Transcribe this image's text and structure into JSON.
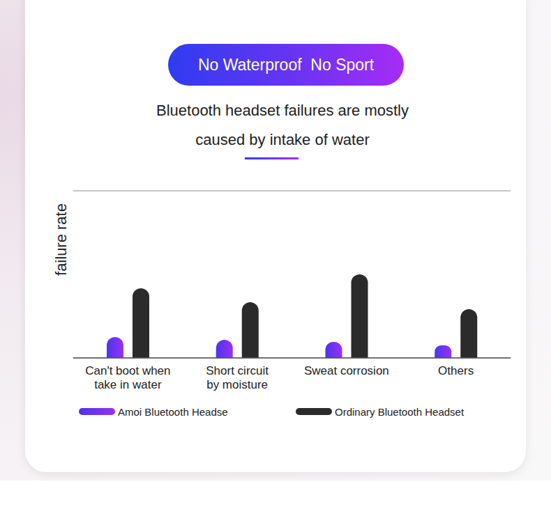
{
  "chart_data": {
    "type": "bar",
    "title": "No Waterproof  No Sport",
    "subtitle": "Bluetooth headset failures are mostly caused by intake of water",
    "ylabel": "failure rate",
    "categories": [
      "Can't boot when take in water",
      "Short circuit by moisture",
      "Sweat corrosion",
      "Others"
    ],
    "series": [
      {
        "name": "Amoi Bluetooth Headse",
        "color": "#4b34f2",
        "values": [
          0.75,
          0.65,
          0.575,
          0.45
        ]
      },
      {
        "name": "Ordinary Bluetooth Headset",
        "color": "#2b2b2b",
        "values": [
          2.5,
          2.0,
          3.0,
          1.75
        ]
      }
    ],
    "ylim": [
      0,
      6
    ],
    "yticks": [
      0,
      1,
      2,
      3,
      4,
      5,
      6
    ],
    "grid": true,
    "tick_labels": "x",
    "legend": "bottom"
  }
}
